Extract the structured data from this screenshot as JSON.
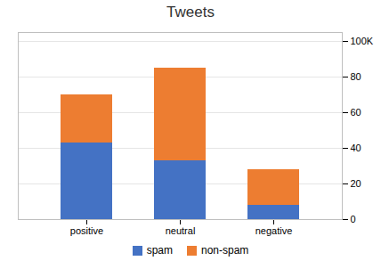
{
  "chart_data": {
    "type": "bar",
    "stacked": true,
    "title": "Tweets",
    "categories": [
      "positive",
      "neutral",
      "negative"
    ],
    "series": [
      {
        "name": "spam",
        "color": "#4472C4",
        "values": [
          43000,
          33000,
          8000
        ]
      },
      {
        "name": "non-spam",
        "color": "#ED7D31",
        "values": [
          27000,
          52000,
          20000
        ]
      }
    ],
    "ylim": [
      0,
      105000
    ],
    "yticks": [
      0,
      {
        "value": 20000,
        "label": "20"
      },
      {
        "value": 40000,
        "label": "40"
      },
      {
        "value": 60000,
        "label": "60"
      },
      {
        "value": 80000,
        "label": "80"
      },
      {
        "value": 100000,
        "label": "100K"
      }
    ],
    "grid": true,
    "legend": "bottom"
  }
}
